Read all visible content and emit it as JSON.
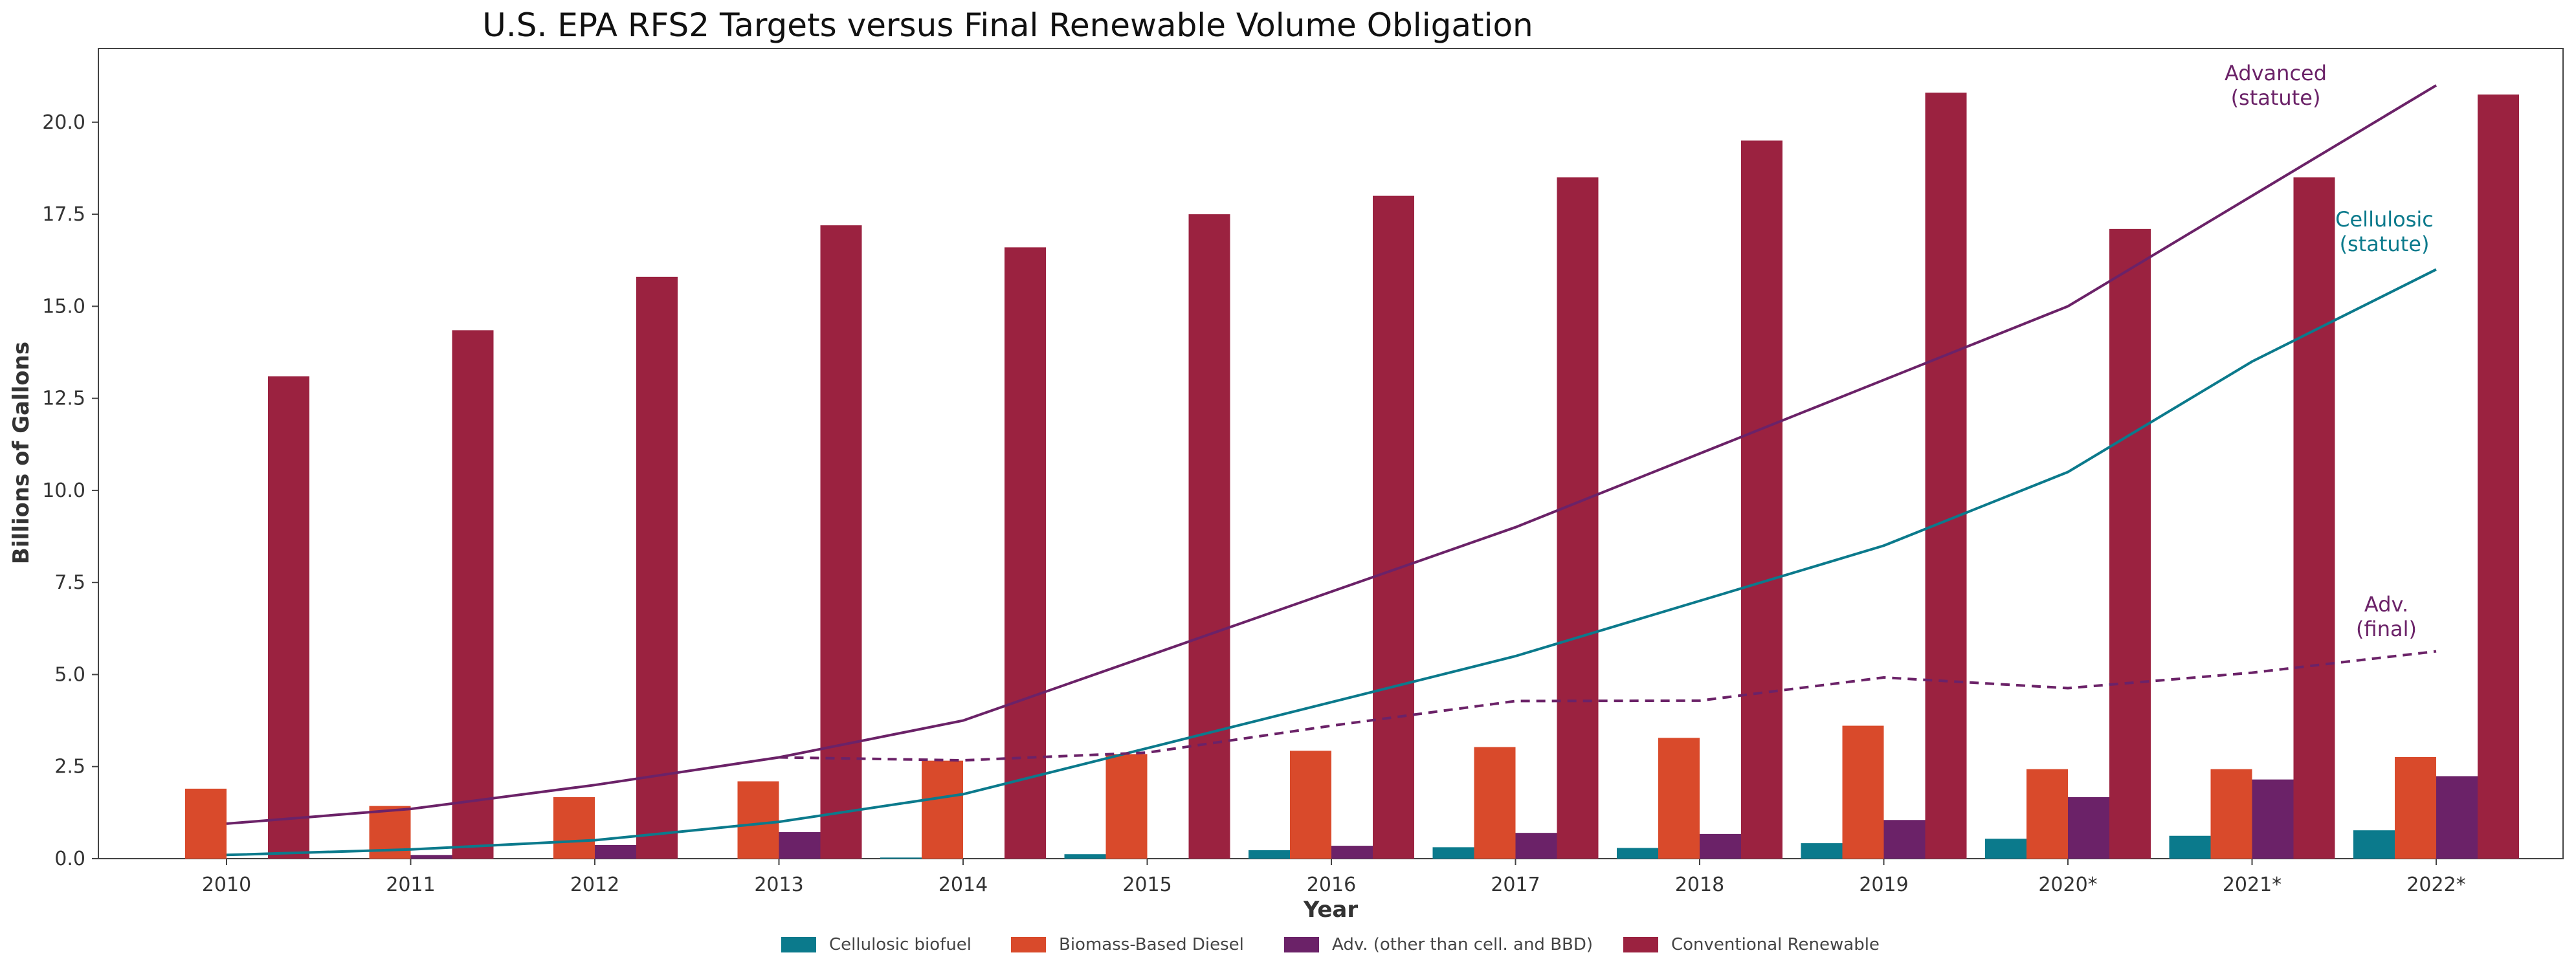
{
  "chart_data": {
    "type": "bar",
    "title": "U.S. EPA RFS2 Targets versus Final Renewable Volume Obligation",
    "xlabel": "Year",
    "ylabel": "Billions of Gallons",
    "ylim": [
      0,
      22
    ],
    "yticks": [
      "0.0",
      "2.5",
      "5.0",
      "7.5",
      "10.0",
      "12.5",
      "15.0",
      "17.5",
      "20.0"
    ],
    "categories": [
      "2010",
      "2011",
      "2012",
      "2013",
      "2014",
      "2015",
      "2016",
      "2017",
      "2018",
      "2019",
      "2020*",
      "2021*",
      "2022*"
    ],
    "grid": false,
    "legend_position": "bottom-center",
    "series": [
      {
        "name": "Cellulosic biofuel",
        "color": "#0b7a8c",
        "values": [
          0.0,
          0.0,
          0.0,
          0.0,
          0.03,
          0.12,
          0.23,
          0.31,
          0.29,
          0.42,
          0.54,
          0.62,
          0.77
        ]
      },
      {
        "name": "Biomass-Based Diesel",
        "color": "#d94a2b",
        "values": [
          1.9,
          1.43,
          1.67,
          2.1,
          2.66,
          2.84,
          2.93,
          3.03,
          3.28,
          3.61,
          2.43,
          2.43,
          2.76
        ]
      },
      {
        "name": "Adv. (other than cell. and BBD)",
        "color": "#6b2268",
        "values": [
          0.0,
          0.1,
          0.37,
          0.72,
          0.0,
          0.0,
          0.35,
          0.7,
          0.67,
          1.05,
          1.67,
          2.15,
          2.24
        ]
      },
      {
        "name": "Conventional Renewable",
        "color": "#9b2240",
        "values": [
          13.1,
          14.35,
          15.8,
          17.2,
          16.6,
          17.5,
          18.0,
          18.5,
          19.5,
          20.8,
          17.1,
          18.5,
          20.75
        ]
      }
    ],
    "lines": [
      {
        "name": "Advanced (statute)",
        "label_line1": "Advanced",
        "label_line2": "(statute)",
        "color": "#6b2268",
        "style": "solid",
        "values": [
          0.95,
          1.35,
          2.0,
          2.75,
          3.75,
          5.5,
          7.25,
          9.0,
          11.0,
          13.0,
          15.0,
          18.0,
          21.0
        ]
      },
      {
        "name": "Cellulosic (statute)",
        "label_line1": "Cellulosic",
        "label_line2": "(statute)",
        "color": "#0b7a8c",
        "style": "solid",
        "values": [
          0.1,
          0.25,
          0.5,
          1.0,
          1.75,
          3.0,
          4.25,
          5.5,
          7.0,
          8.5,
          10.5,
          13.5,
          16.0
        ]
      },
      {
        "name": "Adv. (final)",
        "label_line1": "Adv.",
        "label_line2": "(final)",
        "color": "#6b2268",
        "style": "dashed",
        "start_index": 3,
        "values": [
          null,
          null,
          null,
          2.75,
          2.67,
          2.88,
          3.61,
          4.28,
          4.29,
          4.92,
          4.63,
          5.05,
          5.63
        ]
      }
    ]
  }
}
